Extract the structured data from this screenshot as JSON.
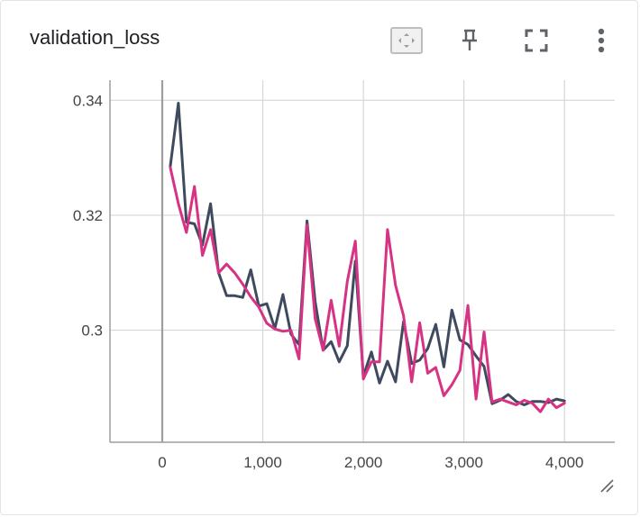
{
  "card": {
    "title": "validation_loss",
    "toolbar": [
      {
        "icon": "fit-domain-icon"
      },
      {
        "icon": "pin-icon"
      },
      {
        "icon": "fullscreen-icon"
      },
      {
        "icon": "more-vert-icon"
      }
    ],
    "resize_icon": "resize-handle-icon"
  },
  "colors": {
    "series_dark": "#3f4a5e",
    "series_pink": "#d63384",
    "grid": "#d6d6d6",
    "axis": "#9e9e9e"
  },
  "chart_data": {
    "type": "line",
    "xlim": [
      -520,
      4500
    ],
    "ylim": [
      0.2805,
      0.3435
    ],
    "x_ticks": [
      0,
      1000,
      2000,
      3000,
      4000
    ],
    "x_tick_labels": [
      "0",
      "1,000",
      "2,000",
      "3,000",
      "4,000"
    ],
    "y_ticks": [
      0.3,
      0.32,
      0.34
    ],
    "y_tick_labels": [
      "0.3",
      "0.32",
      "0.34"
    ],
    "grid": true,
    "series": [
      {
        "color": "#3f4a5e",
        "x": [
          80,
          160,
          240,
          320,
          400,
          480,
          560,
          640,
          720,
          800,
          880,
          960,
          1040,
          1120,
          1200,
          1280,
          1360,
          1440,
          1520,
          1600,
          1680,
          1760,
          1840,
          1920,
          2000,
          2080,
          2160,
          2240,
          2320,
          2400,
          2480,
          2560,
          2640,
          2720,
          2800,
          2880,
          2960,
          3040,
          3120,
          3200,
          3280,
          3360,
          3440,
          3520,
          3600,
          3680,
          3760,
          3840,
          3920,
          4000
        ],
        "y": [
          0.3285,
          0.3395,
          0.3188,
          0.3185,
          0.3148,
          0.322,
          0.31,
          0.306,
          0.306,
          0.3057,
          0.3105,
          0.3042,
          0.3046,
          0.3003,
          0.3062,
          0.2993,
          0.2975,
          0.319,
          0.305,
          0.2965,
          0.298,
          0.2945,
          0.2973,
          0.312,
          0.292,
          0.2962,
          0.2908,
          0.2946,
          0.291,
          0.3015,
          0.2942,
          0.2948,
          0.2968,
          0.301,
          0.2936,
          0.3035,
          0.2983,
          0.2975,
          0.2955,
          0.2937,
          0.2872,
          0.2878,
          0.2888,
          0.2876,
          0.287,
          0.2876,
          0.2876,
          0.2874,
          0.288,
          0.2877
        ]
      },
      {
        "color": "#d63384",
        "x": [
          80,
          160,
          240,
          320,
          400,
          480,
          560,
          640,
          720,
          800,
          880,
          960,
          1040,
          1120,
          1200,
          1280,
          1360,
          1440,
          1520,
          1600,
          1680,
          1760,
          1840,
          1920,
          2000,
          2080,
          2160,
          2240,
          2320,
          2400,
          2480,
          2560,
          2640,
          2720,
          2800,
          2880,
          2960,
          3040,
          3120,
          3200,
          3280,
          3360,
          3440,
          3520,
          3600,
          3680,
          3760,
          3840,
          3920,
          4000
        ],
        "y": [
          0.3283,
          0.322,
          0.317,
          0.325,
          0.313,
          0.3175,
          0.31,
          0.3115,
          0.31,
          0.308,
          0.3058,
          0.304,
          0.3012,
          0.3002,
          0.2998,
          0.3,
          0.295,
          0.3183,
          0.302,
          0.2965,
          0.3052,
          0.2972,
          0.3085,
          0.3155,
          0.2915,
          0.2945,
          0.2945,
          0.3175,
          0.3078,
          0.3025,
          0.291,
          0.3013,
          0.2925,
          0.2935,
          0.2886,
          0.2905,
          0.293,
          0.3043,
          0.288,
          0.2997,
          0.2875,
          0.288,
          0.2875,
          0.287,
          0.2878,
          0.2873,
          0.2858,
          0.288,
          0.2865,
          0.2873
        ]
      }
    ]
  }
}
